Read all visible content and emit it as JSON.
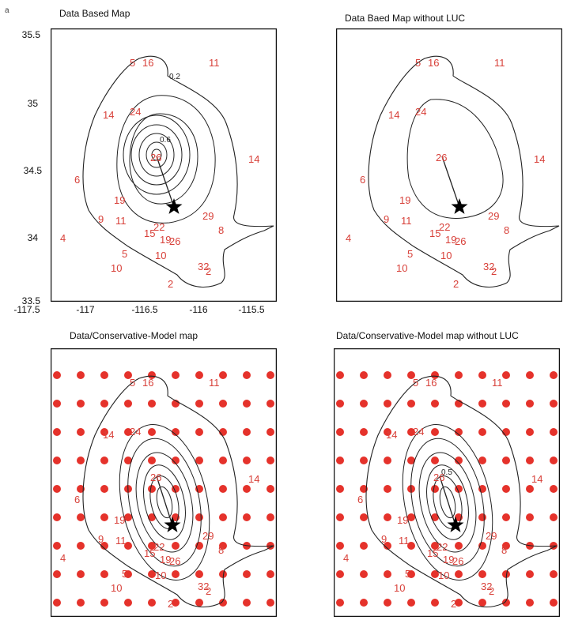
{
  "corner_mark": "a",
  "panels": [
    {
      "title": "Data Based Map",
      "has_grid": false,
      "contour_label_outer": "0.2",
      "contour_label_inner": "0.6"
    },
    {
      "title": "Data Baed Map without LUC",
      "has_grid": false,
      "contour_label_outer": "",
      "contour_label_inner": ""
    },
    {
      "title": "Data/Conservative-Model map",
      "has_grid": true,
      "contour_label_outer": "",
      "contour_label_inner": ""
    },
    {
      "title": "Data/Conservative-Model map without LUC",
      "has_grid": true,
      "contour_label_outer": "",
      "contour_label_inner": "0.5"
    }
  ],
  "axes": {
    "y_ticks": [
      "35.5",
      "35",
      "34.5",
      "34",
      "33.5"
    ],
    "x_ticks": [
      "-117.5",
      "-117",
      "-116.5",
      "-116",
      "-115.5"
    ]
  },
  "stations": [
    "5",
    "16",
    "11",
    "14",
    "24",
    "14",
    "6",
    "19",
    "9",
    "11",
    "4",
    "15",
    "22",
    "19",
    "26",
    "8",
    "5",
    "10",
    "10",
    "32",
    "2",
    "2",
    "29",
    "26"
  ],
  "colors": {
    "station": "#d8413a",
    "grid_dot": "#e5322b",
    "contour": "#222222",
    "frame": "#111111"
  }
}
